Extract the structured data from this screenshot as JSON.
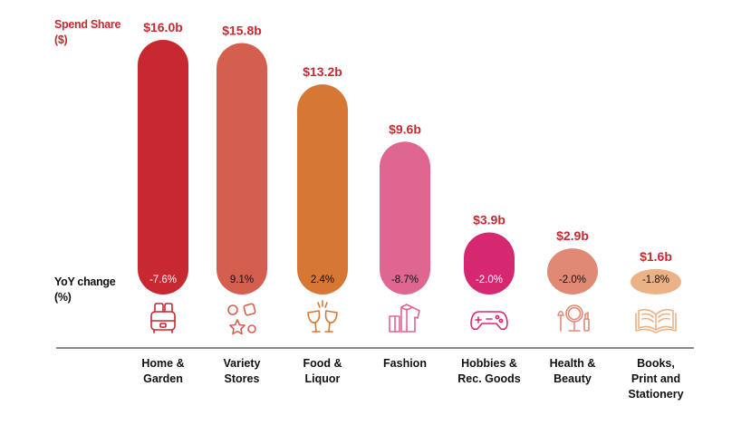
{
  "axis_titles": {
    "spend_line1": "Spend Share",
    "spend_line2": "($)",
    "yoy_line1": "YoY change",
    "yoy_line2": "(%)"
  },
  "chart_data": {
    "type": "bar",
    "title": "",
    "ylabel": "Spend Share ($)",
    "secondary_label": "YoY change (%)",
    "unit": "$b",
    "ylim": [
      0,
      16
    ],
    "categories": [
      [
        "Home &",
        "Garden"
      ],
      [
        "Variety",
        "Stores"
      ],
      [
        "Food &",
        "Liquor"
      ],
      [
        "Fashion"
      ],
      [
        "Hobbies &",
        "Rec. Goods"
      ],
      [
        "Health &",
        "Beauty"
      ],
      [
        "Books,",
        "Print and",
        "Stationery"
      ]
    ],
    "values": [
      16.0,
      15.8,
      13.2,
      9.6,
      3.9,
      2.9,
      1.6
    ],
    "value_labels": [
      "$16.0b",
      "$15.8b",
      "$13.2b",
      "$9.6b",
      "$3.9b",
      "$2.9b",
      "$1.6b"
    ],
    "yoy_change": [
      -7.6,
      9.1,
      2.4,
      -8.7,
      -2.0,
      -2.0,
      -1.8
    ],
    "yoy_labels": [
      "-7.6%",
      "9.1%",
      "2.4%",
      "-8.7%",
      "-2.0%",
      "-2.0%",
      "-1.8%"
    ],
    "colors": [
      "#c8282f",
      "#d45f4e",
      "#d67733",
      "#de6690",
      "#d62870",
      "#e08a76",
      "#ecb287"
    ],
    "yoy_text_colors": [
      "#ffffff",
      "#111111",
      "#111111",
      "#111111",
      "#ffffff",
      "#111111",
      "#111111"
    ],
    "icons": [
      "toaster-icon",
      "shapes-icon",
      "cheers-glasses-icon",
      "clothing-icon",
      "gamepad-icon",
      "beauty-mirror-icon",
      "open-book-icon"
    ]
  }
}
